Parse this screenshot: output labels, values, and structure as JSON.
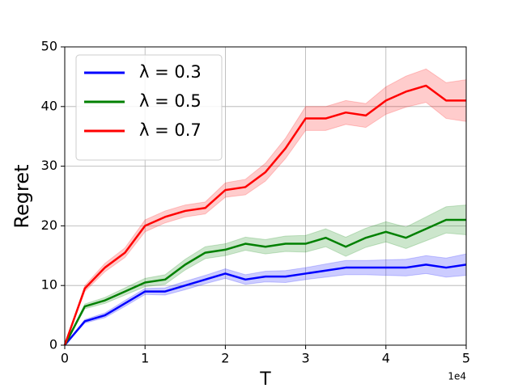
{
  "chart_data": {
    "type": "line",
    "x_label": "T",
    "y_label": "Regret",
    "x_offset_label": "1e4",
    "x": [
      0,
      2500,
      5000,
      7500,
      10000,
      12500,
      15000,
      17500,
      20000,
      22500,
      25000,
      27500,
      30000,
      32500,
      35000,
      37500,
      40000,
      42500,
      45000,
      47500,
      50000
    ],
    "xlim": [
      0,
      50000
    ],
    "xticks": [
      0,
      {
        "value": 10000,
        "label": "1"
      },
      {
        "value": 20000,
        "label": "2"
      },
      {
        "value": 30000,
        "label": "3"
      },
      {
        "value": 40000,
        "label": "4"
      },
      {
        "value": 50000,
        "label": "5"
      }
    ],
    "ylim": [
      0,
      50
    ],
    "yticks": [
      0,
      10,
      20,
      30,
      40,
      50
    ],
    "grid": true,
    "legend": "upper left",
    "series": [
      {
        "name": "λ = 0.3",
        "color": "#0000ff",
        "values": [
          0,
          4,
          5,
          7,
          9,
          9,
          10,
          11,
          12,
          11,
          11.5,
          11.5,
          12,
          12.5,
          13,
          13,
          13,
          13,
          13.5,
          13,
          13.5
        ],
        "lower": [
          0,
          3.7,
          4.6,
          6.5,
          8.5,
          8.4,
          9.3,
          10.3,
          11.2,
          10.2,
          10.6,
          10.5,
          11,
          11.4,
          11.8,
          11.8,
          11.7,
          11.6,
          12,
          11.4,
          11.7
        ],
        "upper": [
          0,
          4.3,
          5.4,
          7.5,
          9.5,
          9.6,
          10.7,
          11.7,
          12.8,
          11.8,
          12.4,
          12.5,
          13,
          13.6,
          14.2,
          14.2,
          14.3,
          14.4,
          15,
          14.6,
          15.3
        ]
      },
      {
        "name": "λ = 0.5",
        "color": "#008000",
        "values": [
          0,
          6.5,
          7.5,
          9,
          10.5,
          11,
          13.5,
          15.5,
          16,
          17,
          16.5,
          17,
          17,
          18,
          16.5,
          18,
          19,
          18,
          19.5,
          21,
          21
        ],
        "lower": [
          0,
          6.1,
          7,
          8.4,
          9.8,
          10.2,
          12.6,
          14.5,
          15,
          15.9,
          15.3,
          15.7,
          15.6,
          16.5,
          14.9,
          16.4,
          17.3,
          16.2,
          17.5,
          18.8,
          18.5
        ],
        "upper": [
          0,
          6.9,
          8,
          9.6,
          11.2,
          11.8,
          14.4,
          16.5,
          17,
          18.1,
          17.7,
          18.3,
          18.4,
          19.5,
          18.1,
          19.6,
          20.7,
          19.8,
          21.5,
          23.2,
          23.5
        ]
      },
      {
        "name": "λ = 0.7",
        "color": "#ff0000",
        "values": [
          0,
          9.5,
          13,
          15.5,
          20,
          21.5,
          22.5,
          23,
          26,
          26.5,
          29,
          33,
          38,
          38,
          39,
          38.5,
          41,
          42.5,
          43.5,
          41,
          41
        ],
        "lower": [
          0,
          9,
          12.3,
          14.7,
          19,
          20.5,
          21.5,
          22,
          24.8,
          25.2,
          27.5,
          31.3,
          36,
          36,
          37,
          36.5,
          38.7,
          39.9,
          40.7,
          38,
          37.5
        ],
        "upper": [
          0,
          10,
          13.7,
          16.3,
          21,
          22.5,
          23.5,
          24,
          27.2,
          27.8,
          30.5,
          34.7,
          40,
          40,
          41,
          40.5,
          43.3,
          45.1,
          46.3,
          44,
          44.5
        ]
      }
    ]
  }
}
